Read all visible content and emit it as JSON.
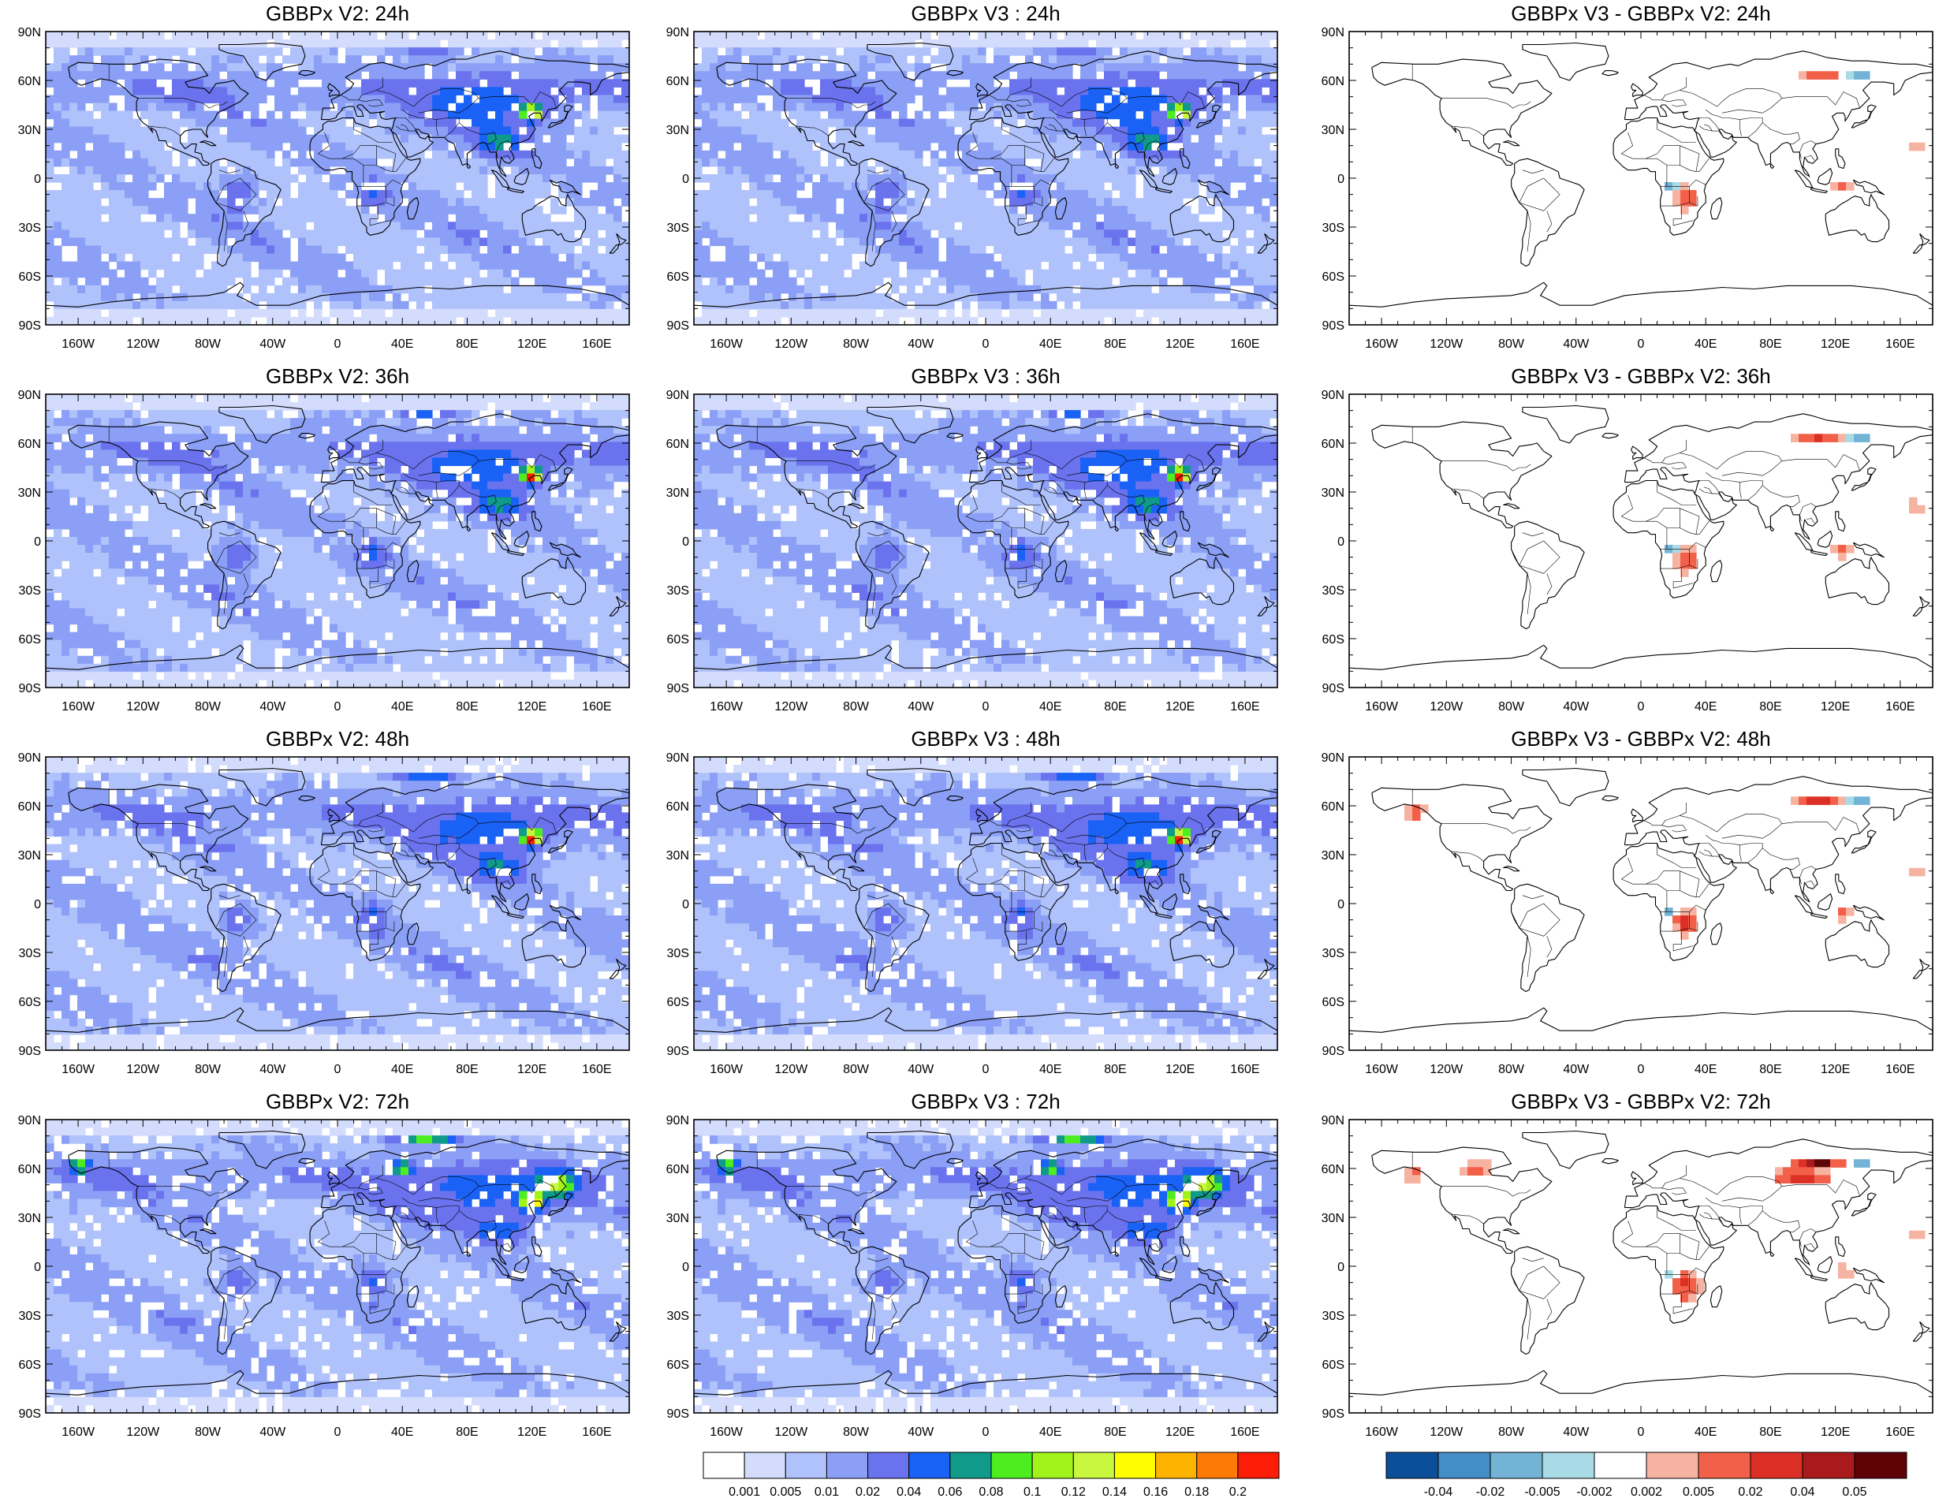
{
  "panels": [
    {
      "title": "GBBPx V2: 24h",
      "kind": "abs",
      "seed": 11,
      "hours": 24
    },
    {
      "title": "GBBPx V3 : 24h",
      "kind": "abs",
      "seed": 11,
      "hours": 24
    },
    {
      "title": "GBBPx V3 - GBBPx V2: 24h",
      "kind": "diff",
      "seed": 21,
      "hours": 24
    },
    {
      "title": "GBBPx V2: 36h",
      "kind": "abs",
      "seed": 12,
      "hours": 36
    },
    {
      "title": "GBBPx V3 : 36h",
      "kind": "abs",
      "seed": 12,
      "hours": 36
    },
    {
      "title": "GBBPx V3 - GBBPx V2: 36h",
      "kind": "diff",
      "seed": 22,
      "hours": 36
    },
    {
      "title": "GBBPx V2: 48h",
      "kind": "abs",
      "seed": 13,
      "hours": 48
    },
    {
      "title": "GBBPx V3 : 48h",
      "kind": "abs",
      "seed": 13,
      "hours": 48
    },
    {
      "title": "GBBPx V3 - GBBPx V2: 48h",
      "kind": "diff",
      "seed": 23,
      "hours": 48
    },
    {
      "title": "GBBPx V2: 72h",
      "kind": "abs",
      "seed": 14,
      "hours": 72
    },
    {
      "title": "GBBPx V3 : 72h",
      "kind": "abs",
      "seed": 14,
      "hours": 72
    },
    {
      "title": "GBBPx V3 - GBBPx V2: 72h",
      "kind": "diff",
      "seed": 24,
      "hours": 72
    }
  ],
  "lat_ticks": [
    "90N",
    "60N",
    "30N",
    "0",
    "30S",
    "60S",
    "90S"
  ],
  "lon_ticks": [
    "160W",
    "120W",
    "80W",
    "40W",
    "0",
    "40E",
    "80E",
    "120E",
    "160E"
  ],
  "lon_tick_values": [
    -160,
    -120,
    -80,
    -40,
    0,
    40,
    80,
    120,
    160
  ],
  "lat_tick_values": [
    90,
    60,
    30,
    0,
    -30,
    -60,
    -90
  ],
  "abs_colorbar": {
    "labels": [
      "0.001",
      "0.005",
      "0.01",
      "0.02",
      "0.04",
      "0.06",
      "0.08",
      "0.1",
      "0.12",
      "0.14",
      "0.16",
      "0.18",
      "0.2"
    ],
    "colors": [
      "#ffffff",
      "#d3dcfc",
      "#b0c2fb",
      "#8a9ff5",
      "#6a72ee",
      "#1a62f5",
      "#0f9a8a",
      "#4ded20",
      "#a1f31b",
      "#c9f63f",
      "#fffd00",
      "#fdb300",
      "#fe7a07",
      "#fc1d06"
    ]
  },
  "diff_colorbar": {
    "labels": [
      "-0.04",
      "-0.02",
      "-0.005",
      "-0.002",
      "0.002",
      "0.005",
      "0.02",
      "0.04",
      "0.05"
    ],
    "colors": [
      "#0a4f97",
      "#438ec6",
      "#73b3d5",
      "#a9dbe6",
      "#ffffff",
      "#f7b3a2",
      "#f2604a",
      "#dc2f26",
      "#a81a1c",
      "#5f0307"
    ]
  }
}
